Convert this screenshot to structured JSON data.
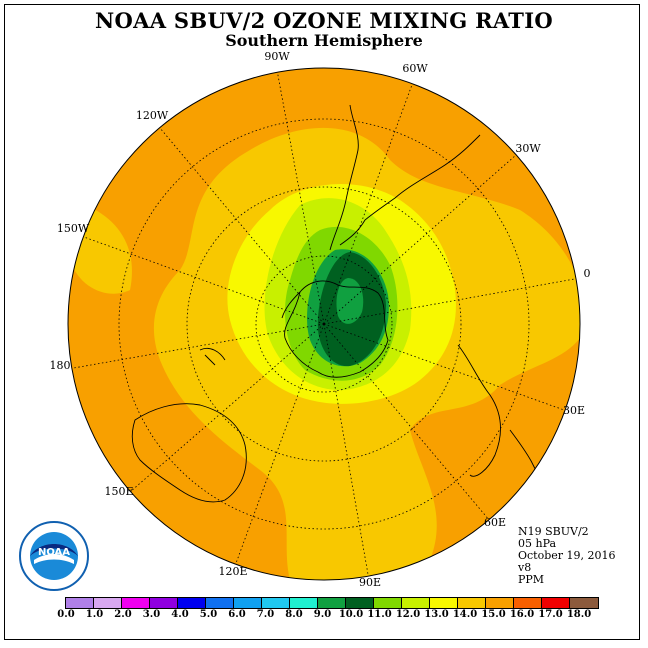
{
  "title": "NOAA SBUV/2 OZONE MIXING RATIO",
  "subtitle": "Southern Hemisphere",
  "longitude_labels": [
    "90W",
    "60W",
    "30W",
    "0",
    "30E",
    "60E",
    "90E",
    "120E",
    "150E",
    "180",
    "150W",
    "120W"
  ],
  "info": {
    "instrument": "N19 SBUV/2",
    "pressure": "05 hPa",
    "date": "October 19, 2016",
    "version": "v8",
    "units": "PPM"
  },
  "logo_text": "NOAA",
  "colorbar": {
    "ticks": [
      "0.0",
      "1.0",
      "2.0",
      "3.0",
      "4.0",
      "5.0",
      "6.0",
      "7.0",
      "8.0",
      "9.0",
      "10.0",
      "11.0",
      "12.0",
      "13.0",
      "14.0",
      "15.0",
      "16.0",
      "17.0",
      "18.0"
    ],
    "colors": [
      "#b080e8",
      "#d8a8f0",
      "#f000f0",
      "#9000e0",
      "#0000f0",
      "#1070f0",
      "#10a0f0",
      "#20c8f0",
      "#20f0d0",
      "#10a040",
      "#006020",
      "#80d800",
      "#c8f000",
      "#f8f800",
      "#f8c800",
      "#f8a000",
      "#f86000",
      "#f00000",
      "#8c5a3c"
    ]
  },
  "field_colors": {
    "orange": "#f8a000",
    "gold": "#f8c800",
    "yellow": "#f8f800",
    "light_green": "#c8f000",
    "green": "#80d800",
    "mid_green": "#10a040",
    "dark_green": "#006020"
  }
}
